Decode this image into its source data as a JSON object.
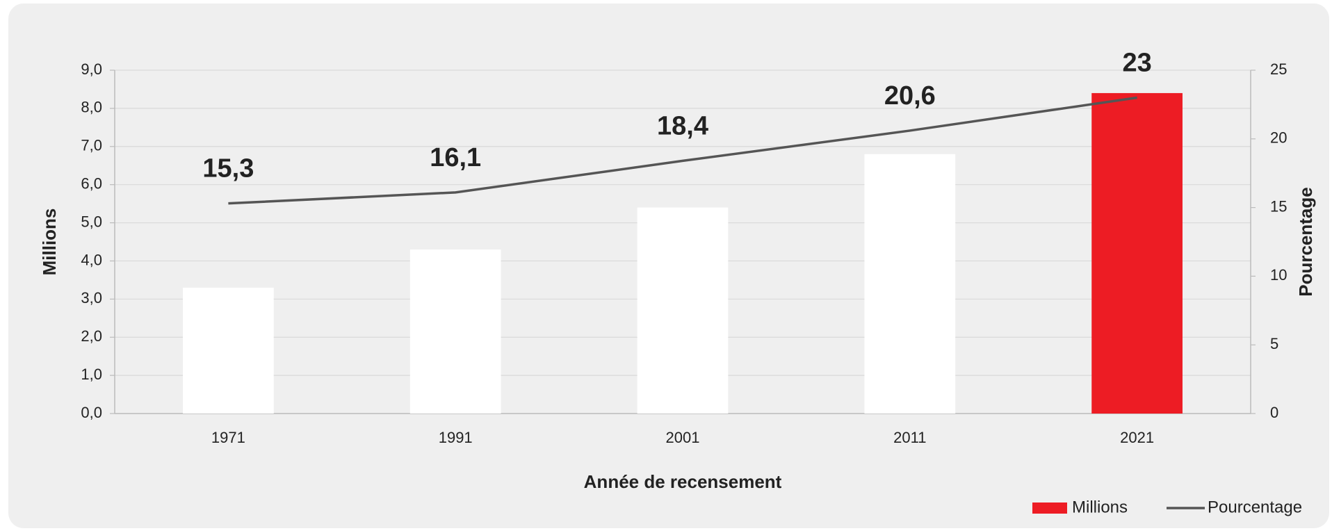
{
  "chart_data": {
    "type": "bar",
    "categories": [
      "1971",
      "1991",
      "2001",
      "2011",
      "2021"
    ],
    "series": [
      {
        "name": "Millions",
        "type": "bar",
        "color": "#ed1c24",
        "colors": [
          "#ffffff",
          "#ffffff",
          "#ffffff",
          "#ffffff",
          "#ed1c24"
        ],
        "values": [
          3.3,
          4.3,
          5.4,
          6.8,
          8.4
        ]
      },
      {
        "name": "Pourcentage",
        "type": "line",
        "axis": "y2",
        "color": "#555555",
        "values": [
          15.3,
          16.1,
          18.4,
          20.6,
          23
        ],
        "value_labels": [
          "15,3",
          "16,1",
          "18,4",
          "20,6",
          "23"
        ]
      }
    ],
    "xlabel": "Année de recensement",
    "ylabel": "Millions",
    "y2label": "Pourcentage",
    "ylim": [
      0,
      9
    ],
    "yticks": [
      {
        "value": 0,
        "label": "0,0"
      },
      {
        "value": 1,
        "label": "1,0"
      },
      {
        "value": 2,
        "label": "2,0"
      },
      {
        "value": 3,
        "label": "3,0"
      },
      {
        "value": 4,
        "label": "4,0"
      },
      {
        "value": 5,
        "label": "5,0"
      },
      {
        "value": 6,
        "label": "6,0"
      },
      {
        "value": 7,
        "label": "7,0"
      },
      {
        "value": 8,
        "label": "8,0"
      },
      {
        "value": 9,
        "label": "9,0"
      }
    ],
    "y2lim": [
      0,
      25
    ],
    "y2ticks": [
      0,
      5,
      10,
      15,
      20,
      25
    ],
    "grid": true,
    "legend": "bottom-right"
  }
}
